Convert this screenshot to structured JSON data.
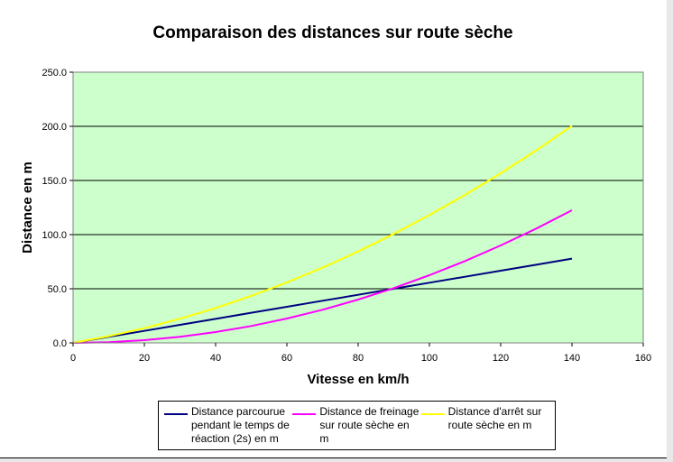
{
  "chart_data": {
    "type": "line",
    "title": "Comparaison des distances sur route sèche",
    "xlabel": "Vitesse en km/h",
    "ylabel": "Distance en m",
    "xlim": [
      0,
      160
    ],
    "ylim": [
      0,
      250
    ],
    "x_ticks": [
      "0",
      "20",
      "40",
      "60",
      "80",
      "100",
      "120",
      "140",
      "160"
    ],
    "y_ticks": [
      "0.0",
      "50.0",
      "100.0",
      "150.0",
      "200.0",
      "250.0"
    ],
    "grid": "horizontal",
    "legend_position": "bottom",
    "plot_background": "#ccffcc",
    "x": [
      0,
      10,
      20,
      30,
      40,
      50,
      60,
      70,
      80,
      90,
      100,
      110,
      120,
      130,
      140
    ],
    "series": [
      {
        "name": "Distance parcourue pendant le temps de réaction (2s) en m",
        "legend_text": "Distance parcourue\npendant le temps de\nréaction (2s) en m",
        "color": "#000080",
        "values": [
          0,
          5.6,
          11.1,
          16.7,
          22.2,
          27.8,
          33.3,
          38.9,
          44.4,
          50.0,
          55.6,
          61.1,
          66.7,
          72.2,
          77.8
        ]
      },
      {
        "name": "Distance de freinage sur route sèche en m",
        "legend_text": "Distance de freinage\nsur route sèche en m",
        "color": "#ff00ff",
        "values": [
          0,
          0.6,
          2.5,
          5.6,
          10.0,
          15.6,
          22.5,
          30.6,
          40.0,
          50.6,
          62.5,
          75.6,
          90.0,
          105.6,
          122.5
        ]
      },
      {
        "name": "Distance d'arrêt sur route sèche en m",
        "legend_text": "Distance d'arrêt sur\nroute sèche en m",
        "color": "#ffff00",
        "values": [
          0,
          6.2,
          13.6,
          22.3,
          32.2,
          43.4,
          55.8,
          69.5,
          84.4,
          100.6,
          118.1,
          136.7,
          156.7,
          177.8,
          200.3
        ]
      }
    ]
  }
}
